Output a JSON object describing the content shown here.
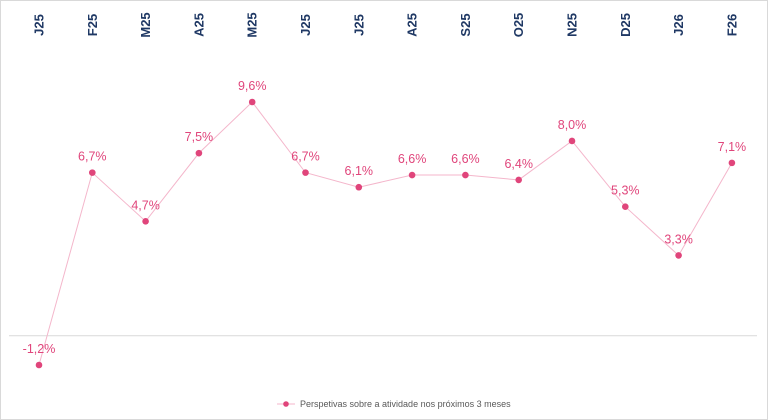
{
  "chart_data": {
    "type": "line",
    "categories": [
      "J25",
      "F25",
      "M25",
      "A25",
      "M25",
      "J25",
      "J25",
      "A25",
      "S25",
      "O25",
      "N25",
      "D25",
      "J26",
      "F26"
    ],
    "series": [
      {
        "name": "Perspetivas sobre a atividade nos próximos 3 meses",
        "values": [
          -1.2,
          6.7,
          4.7,
          7.5,
          9.6,
          6.7,
          6.1,
          6.6,
          6.6,
          6.4,
          8.0,
          5.3,
          3.3,
          7.1
        ],
        "labels": [
          "-1,2%",
          "6,7%",
          "4,7%",
          "7,5%",
          "9,6%",
          "6,7%",
          "6,1%",
          "6,6%",
          "6,6%",
          "6,4%",
          "8,0%",
          "5,3%",
          "3,3%",
          "7,1%"
        ],
        "color": "#e0457b",
        "line_color": "#f4b6cb"
      }
    ],
    "ylim": [
      -1.2,
      9.6
    ],
    "baseline": 0,
    "axis_color": "#d9d9d9",
    "tick_color": "#1f3864",
    "grid": false,
    "legend_position": "bottom-center",
    "title": "",
    "xlabel": "",
    "ylabel": ""
  }
}
